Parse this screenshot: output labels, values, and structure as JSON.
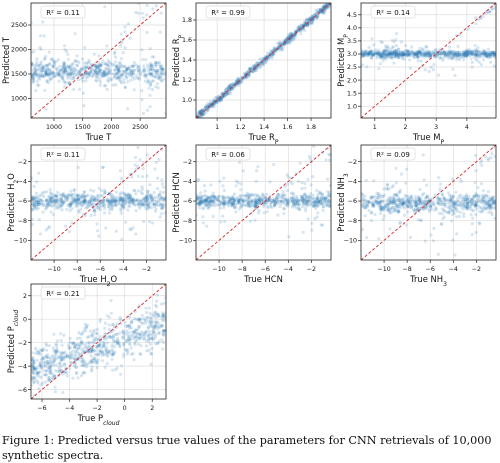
{
  "caption": "Figure 1: Predicted versus true values of the parameters for CNN retrievals of 10,000 synthetic spectra.",
  "colors": {
    "points": "#1f77b4",
    "diagonal": "#d62728",
    "grid": "#dddddd",
    "axis": "#222222"
  },
  "chart_data": [
    {
      "type": "scatter",
      "id": "T",
      "xlabel": "True T",
      "ylabel": "Predicted T",
      "annotation": "R² = 0.11",
      "xlim": [
        600,
        2950
      ],
      "ylim": [
        600,
        2950
      ],
      "xticks": [
        1000,
        1500,
        2000,
        2500
      ],
      "yticks": [
        1000,
        1500,
        2000,
        2500
      ],
      "diagonal": true,
      "grid": true,
      "pattern": {
        "r2": 0.11,
        "center": 1550,
        "spread": 110,
        "n": 650
      }
    },
    {
      "type": "scatter",
      "id": "RP",
      "xlabel": "True R_P",
      "ylabel": "Predicted R_P",
      "annotation": "R² = 0.99",
      "xlim": [
        0.82,
        1.97
      ],
      "ylim": [
        0.82,
        1.97
      ],
      "xticks": [
        1.0,
        1.2,
        1.4,
        1.6,
        1.8
      ],
      "yticks": [
        1.0,
        1.2,
        1.4,
        1.6,
        1.8
      ],
      "diagonal": true,
      "grid": true,
      "pattern": {
        "r2": 0.99,
        "spread": 0.02,
        "n": 650
      }
    },
    {
      "type": "scatter",
      "id": "MP",
      "xlabel": "True M_P",
      "ylabel": "Predicted M_P",
      "annotation": "R² = 0.14",
      "xlim": [
        0.55,
        4.95
      ],
      "ylim": [
        0.55,
        4.95
      ],
      "xticks": [
        1,
        2,
        3,
        4
      ],
      "yticks": [
        1.0,
        1.5,
        2.0,
        2.5,
        3.0,
        3.5,
        4.0,
        4.5
      ],
      "diagonal": true,
      "grid": true,
      "pattern": {
        "r2": 0.14,
        "center": 3.0,
        "spread": 0.07,
        "n": 650
      }
    },
    {
      "type": "scatter",
      "id": "H2O",
      "xlabel": "True H_2O",
      "ylabel": "Predicted H_2O",
      "annotation": "R² = 0.11",
      "xlim": [
        -12,
        -0.3
      ],
      "ylim": [
        -12,
        -0.3
      ],
      "xticks": [
        -10,
        -8,
        -6,
        -4,
        -2
      ],
      "yticks": [
        -10,
        -8,
        -6,
        -4,
        -2
      ],
      "diagonal": true,
      "grid": true,
      "pattern": {
        "r2": 0.11,
        "center": -6.0,
        "spread": 0.45,
        "n": 650
      }
    },
    {
      "type": "scatter",
      "id": "HCN",
      "xlabel": "True HCN",
      "ylabel": "Predicted HCN",
      "annotation": "R² = 0.06",
      "xlim": [
        -12,
        -0.3
      ],
      "ylim": [
        -12,
        -0.3
      ],
      "xticks": [
        -10,
        -8,
        -6,
        -4,
        -2
      ],
      "yticks": [
        -10,
        -8,
        -6,
        -4,
        -2
      ],
      "diagonal": true,
      "grid": true,
      "pattern": {
        "r2": 0.06,
        "center": -6.0,
        "spread": 0.35,
        "n": 650
      }
    },
    {
      "type": "scatter",
      "id": "NH3",
      "xlabel": "True NH_3",
      "ylabel": "Predicted NH_3",
      "annotation": "R² = 0.09",
      "xlim": [
        -12,
        -0.3
      ],
      "ylim": [
        -12,
        -0.3
      ],
      "xticks": [
        -10,
        -8,
        -6,
        -4,
        -2
      ],
      "yticks": [
        -10,
        -8,
        -6,
        -4,
        -2
      ],
      "diagonal": true,
      "grid": true,
      "pattern": {
        "r2": 0.09,
        "center": -6.2,
        "spread": 0.45,
        "n": 650
      }
    },
    {
      "type": "scatter",
      "id": "Pcloud",
      "xlabel": "True P_cloud",
      "ylabel": "Predicted P_cloud",
      "annotation": "R² = 0.21",
      "xlim": [
        -6.8,
        3.0
      ],
      "ylim": [
        -6.8,
        3.0
      ],
      "xticks": [
        -6,
        -4,
        -2,
        0,
        2
      ],
      "yticks": [
        -6,
        -4,
        -2,
        0,
        2
      ],
      "diagonal": true,
      "grid": true,
      "pattern": {
        "r2": 0.21,
        "spread": 1.0,
        "n": 700
      }
    }
  ]
}
